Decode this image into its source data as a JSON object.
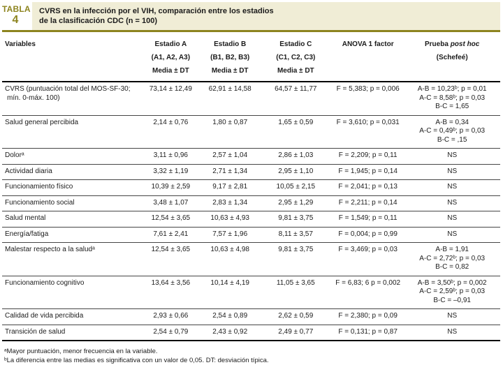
{
  "colors": {
    "accent_olive": "#8d841f",
    "title_background": "#f0edd6",
    "text": "#1b1b1b"
  },
  "header": {
    "table_label": "TABLA",
    "table_number": "4",
    "title_line1": "CVRS en la infección por el VIH, comparación entre los estadios",
    "title_line2": "de la clasificación CDC (n = 100)"
  },
  "columns": {
    "variables": "Variables",
    "estadio_a": {
      "line1": "Estadio A",
      "line2": "(A1, A2, A3)",
      "line3": "Media ± DT"
    },
    "estadio_b": {
      "line1": "Estadio B",
      "line2": "(B1, B2, B3)",
      "line3": "Media ± DT"
    },
    "estadio_c": {
      "line1": "Estadio C",
      "line2": "(C1, C2, C3)",
      "line3": "Media ± DT"
    },
    "anova": {
      "line1": "ANOVA 1 factor"
    },
    "posthoc": {
      "line1_plain": "Prueba ",
      "line1_italic": "post hoc",
      "line2": "(Schefeé)"
    }
  },
  "rows": [
    {
      "variable": "CVRS (puntuación total del MOS-SF-30; mín. 0-máx. 100)",
      "a": "73,14 ± 12,49",
      "b": "62,91 ± 14,58",
      "c": "64,57 ± 11,77",
      "anova": "F = 5,383; p = 0,006",
      "posthoc": [
        "A-B = 10,23ᵇ; p = 0,01",
        "A-C = 8,58ᵇ; p = 0,03",
        "B-C = 1,65"
      ]
    },
    {
      "variable": "Salud general percibida",
      "a": "2,14 ± 0,76",
      "b": "1,80 ± 0,87",
      "c": "1,65 ± 0,59",
      "anova": "F = 3,610; p = 0,031",
      "posthoc": [
        "A-B = 0,34",
        "A-C = 0,49ᵇ; p = 0,03",
        "B-C = ,15"
      ]
    },
    {
      "variable": "Dolorᵃ",
      "a": "3,11 ± 0,96",
      "b": "2,57 ± 1,04",
      "c": "2,86 ± 1,03",
      "anova": "F = 2,209; p = 0,11",
      "posthoc": [
        "NS"
      ]
    },
    {
      "variable": "Actividad diaria",
      "a": "3,32 ± 1,19",
      "b": "2,71 ± 1,34",
      "c": "2,95 ± 1,10",
      "anova": "F = 1,945; p = 0,14",
      "posthoc": [
        "NS"
      ]
    },
    {
      "variable": "Funcionamiento físico",
      "a": "10,39 ± 2,59",
      "b": "9,17 ± 2,81",
      "c": "10,05 ± 2,15",
      "anova": "F = 2,041; p = 0,13",
      "posthoc": [
        "NS"
      ]
    },
    {
      "variable": "Funcionamiento social",
      "a": "3,48 ± 1,07",
      "b": "2,83 ± 1,34",
      "c": "2,95 ± 1,29",
      "anova": "F = 2,211; p = 0,14",
      "posthoc": [
        "NS"
      ]
    },
    {
      "variable": "Salud mental",
      "a": "12,54 ± 3,65",
      "b": "10,63 ± 4,93",
      "c": "9,81 ± 3,75",
      "anova": "F = 1,549; p = 0,11",
      "posthoc": [
        "NS"
      ]
    },
    {
      "variable": "Energía/fatiga",
      "a": "7,61 ± 2,41",
      "b": "7,57 ± 1,96",
      "c": "8,11 ± 3,57",
      "anova": "F = 0,004; p = 0,99",
      "posthoc": [
        "NS"
      ]
    },
    {
      "variable": "Malestar respecto a la saludᵃ",
      "a": "12,54 ± 3,65",
      "b": "10,63 ± 4,98",
      "c": "9,81 ± 3,75",
      "anova": "F = 3,469; p = 0,03",
      "posthoc": [
        "A-B = 1,91",
        "A-C = 2,72ᵇ; p = 0,03",
        "B-C = 0,82"
      ]
    },
    {
      "variable": "Funcionamiento cognitivo",
      "a": "13,64 ± 3,56",
      "b": "10,14 ± 4,19",
      "c": "11,05 ± 3,65",
      "anova": "F = 6,83; 6 p = 0,002",
      "posthoc": [
        "A-B = 3,50ᵇ; p = 0,002",
        "A-C = 2,59ᵇ; p = 0,03",
        "B-C = –0,91"
      ]
    },
    {
      "variable": "Calidad de vida percibida",
      "a": "2,93 ± 0,66",
      "b": "2,54 ± 0,89",
      "c": "2,62 ± 0,59",
      "anova": "F = 2,380; p = 0,09",
      "posthoc": [
        "NS"
      ]
    },
    {
      "variable": "Transición de salud",
      "a": "2,54 ± 0,79",
      "b": "2,43 ± 0,92",
      "c": "2,49 ± 0,77",
      "anova": "F = 0,131; p = 0,87",
      "posthoc": [
        "NS"
      ]
    }
  ],
  "footnotes": {
    "a": "ᵃMayor puntuación, menor frecuencia en la variable.",
    "b": "ᵇLa diferencia entre las medias es significativa con un valor de 0,05. DT: desviación típica."
  }
}
